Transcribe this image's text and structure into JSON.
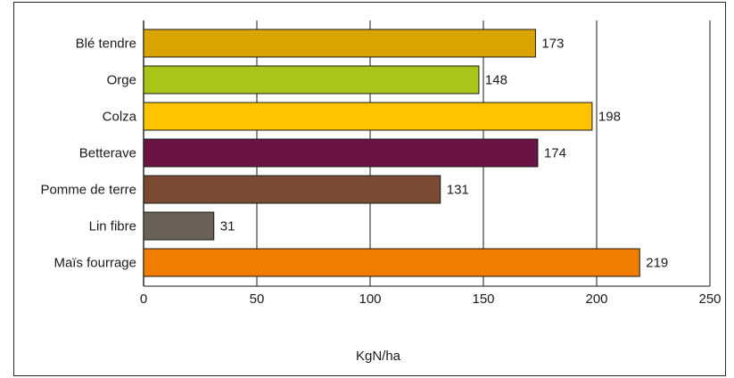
{
  "chart_data": {
    "type": "bar",
    "orientation": "horizontal",
    "categories": [
      "Blé tendre",
      "Orge",
      "Colza",
      "Betterave",
      "Pomme de terre",
      "Lin fibre",
      "Maïs fourrage"
    ],
    "values": [
      173,
      148,
      198,
      174,
      131,
      31,
      219
    ],
    "colors": [
      "#d9a400",
      "#a8c61a",
      "#ffc400",
      "#6b1444",
      "#7a4a33",
      "#6b6157",
      "#f07d00"
    ],
    "value_labels": [
      "173",
      "148",
      "198",
      "174",
      "131",
      "31",
      "219"
    ],
    "xlabel": "KgN/ha",
    "xlim": [
      0,
      250
    ],
    "xticks": [
      0,
      50,
      100,
      150,
      200,
      250
    ],
    "grid": "vertical"
  }
}
